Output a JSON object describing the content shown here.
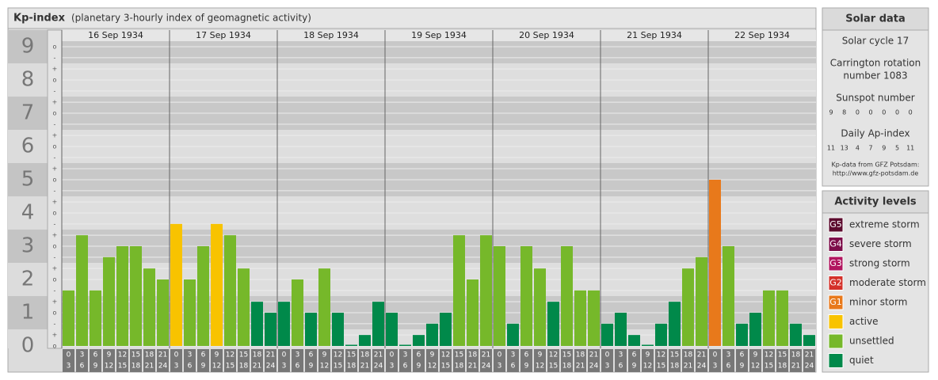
{
  "chart_data": {
    "type": "bar",
    "title": "Kp-index",
    "subtitle": "(planetary 3-hourly index of geomagnetic activity)",
    "ylim": [
      0,
      9.5
    ],
    "yticks": [
      0,
      1,
      2,
      3,
      4,
      5,
      6,
      7,
      8,
      9
    ],
    "minor_ticks": [
      {
        "value": 0,
        "label": "o"
      },
      {
        "value": 0.33,
        "label": "+"
      },
      {
        "value": 0.67,
        "label": "-"
      },
      {
        "value": 1,
        "label": "o"
      },
      {
        "value": 1.33,
        "label": "+"
      },
      {
        "value": 1.67,
        "label": "-"
      },
      {
        "value": 2,
        "label": "o"
      },
      {
        "value": 2.33,
        "label": "+"
      },
      {
        "value": 2.67,
        "label": "-"
      },
      {
        "value": 3,
        "label": "o"
      },
      {
        "value": 3.33,
        "label": "+"
      },
      {
        "value": 3.67,
        "label": "-"
      },
      {
        "value": 4,
        "label": "o"
      },
      {
        "value": 4.33,
        "label": "+"
      },
      {
        "value": 4.67,
        "label": "-"
      },
      {
        "value": 5,
        "label": "o"
      },
      {
        "value": 5.33,
        "label": "+"
      },
      {
        "value": 5.67,
        "label": "-"
      },
      {
        "value": 6,
        "label": "o"
      },
      {
        "value": 6.33,
        "label": "+"
      },
      {
        "value": 6.67,
        "label": "-"
      },
      {
        "value": 7,
        "label": "o"
      },
      {
        "value": 7.33,
        "label": "+"
      },
      {
        "value": 7.67,
        "label": "-"
      },
      {
        "value": 8,
        "label": "o"
      },
      {
        "value": 8.33,
        "label": "+"
      },
      {
        "value": 8.67,
        "label": "-"
      },
      {
        "value": 9,
        "label": "o"
      }
    ],
    "hour_ticks": [
      0,
      3,
      6,
      9,
      12,
      15,
      18,
      21,
      24
    ],
    "series": [
      {
        "name": "16 Sep 1934",
        "values": [
          1.67,
          3.33,
          1.67,
          2.67,
          3,
          3,
          2.33,
          2
        ],
        "colors": [
          "#76b82a",
          "#76b82a",
          "#76b82a",
          "#76b82a",
          "#76b82a",
          "#76b82a",
          "#76b82a",
          "#76b82a"
        ]
      },
      {
        "name": "17 Sep 1934",
        "values": [
          3.67,
          2,
          3,
          3.67,
          3.33,
          2.33,
          1.33,
          1
        ],
        "colors": [
          "#f8c300",
          "#76b82a",
          "#76b82a",
          "#f8c300",
          "#76b82a",
          "#76b82a",
          "#00894a",
          "#00894a"
        ]
      },
      {
        "name": "18 Sep 1934",
        "values": [
          1.33,
          2,
          1,
          2.33,
          1,
          0,
          0.33,
          1.33
        ],
        "colors": [
          "#00894a",
          "#76b82a",
          "#00894a",
          "#76b82a",
          "#00894a",
          "#00894a",
          "#00894a",
          "#00894a"
        ]
      },
      {
        "name": "19 Sep 1934",
        "values": [
          1,
          0,
          0.33,
          0.67,
          1,
          3.33,
          2,
          3.33
        ],
        "colors": [
          "#00894a",
          "#00894a",
          "#00894a",
          "#00894a",
          "#00894a",
          "#76b82a",
          "#76b82a",
          "#76b82a"
        ]
      },
      {
        "name": "20 Sep 1934",
        "values": [
          3,
          0.67,
          3,
          2.33,
          1.33,
          3,
          1.67,
          1.67
        ],
        "colors": [
          "#76b82a",
          "#00894a",
          "#76b82a",
          "#76b82a",
          "#00894a",
          "#76b82a",
          "#76b82a",
          "#76b82a"
        ]
      },
      {
        "name": "21 Sep 1934",
        "values": [
          0.67,
          1,
          0.33,
          0,
          0.67,
          1.33,
          2.33,
          2.67
        ],
        "colors": [
          "#00894a",
          "#00894a",
          "#00894a",
          "#00894a",
          "#00894a",
          "#00894a",
          "#76b82a",
          "#76b82a"
        ]
      },
      {
        "name": "22 Sep 1934",
        "values": [
          5,
          3,
          0.67,
          1,
          1.67,
          1.67,
          0.67,
          0.33
        ],
        "colors": [
          "#e8791b",
          "#76b82a",
          "#00894a",
          "#00894a",
          "#76b82a",
          "#76b82a",
          "#00894a",
          "#00894a"
        ]
      }
    ]
  },
  "solar_data": {
    "title": "Solar data",
    "cycle": "Solar cycle 17",
    "carrington": [
      "Carrington rotation",
      "number 1083"
    ],
    "sunspot_title": "Sunspot number",
    "sunspot": [
      9,
      8,
      0,
      0,
      0,
      0,
      0
    ],
    "ap_title": "Daily Ap-index",
    "ap": [
      11,
      13,
      4,
      7,
      9,
      5,
      11
    ],
    "source": "Kp-data from GFZ Potsdam:",
    "url": "http://www.gfz-potsdam.de"
  },
  "activity_levels": {
    "title": "Activity levels",
    "items": [
      {
        "code": "G5",
        "label": "extreme storm",
        "color": "#5c0b2e"
      },
      {
        "code": "G4",
        "label": "severe storm",
        "color": "#7d0d4a"
      },
      {
        "code": "G3",
        "label": "strong storm",
        "color": "#b1155f"
      },
      {
        "code": "G2",
        "label": "moderate storm",
        "color": "#d4312a"
      },
      {
        "code": "G1",
        "label": "minor storm",
        "color": "#e8791b"
      },
      {
        "label": "active",
        "color": "#f8c300"
      },
      {
        "label": "unsettled",
        "color": "#76b82a"
      },
      {
        "label": "quiet",
        "color": "#00894a"
      }
    ]
  }
}
